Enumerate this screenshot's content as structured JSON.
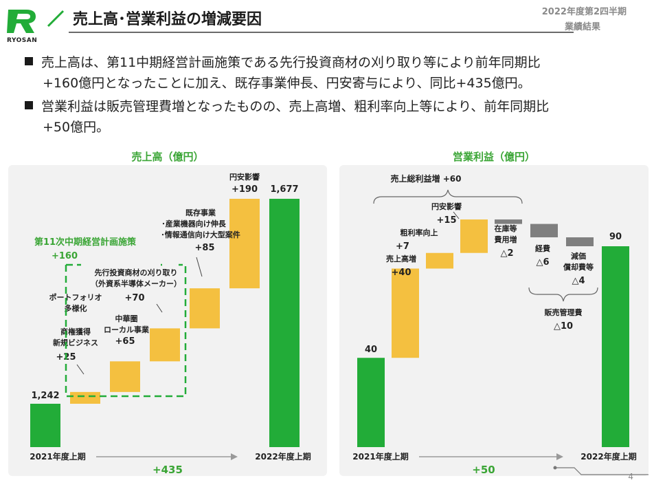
{
  "header": {
    "title": "売上高･営業利益の増減要因",
    "period_line1": "2022年度第2四半期",
    "period_line2": "業績結果",
    "logo_text": "RYOSAN"
  },
  "bullets": [
    {
      "line1": "売上高は、第11中期経営計画施策である先行投資商材の刈り取り等により前年同期比",
      "line2": "+160億円となったことに加え、既存事業伸長、円安寄与により、同比+435億円。"
    },
    {
      "line1": "営業利益は販売管理費増となったものの、売上高増、粗利率向上等により、前年同期比",
      "line2": "+50億円。"
    }
  ],
  "colors": {
    "green": "#22ac38",
    "yellow": "#f4c040",
    "gray": "#7f7f7f",
    "accent_text": "#3aa535"
  },
  "page_number": "4",
  "chart_data": [
    {
      "type": "bar",
      "subtype": "waterfall",
      "title": "売上高（億円）",
      "ylim": [
        1150,
        1720
      ],
      "start": {
        "label": "2021年度上期",
        "value": 1242,
        "value_label": "1,242"
      },
      "steps": [
        {
          "label_lines": [
            "ポートフォリオ",
            "多様化",
            "商権獲得",
            "新規ビジネス"
          ],
          "value": 25,
          "value_label": "+25"
        },
        {
          "label_lines": [
            "中華圏",
            "ローカル事業"
          ],
          "value": 65,
          "value_label": "+65"
        },
        {
          "label_lines": [
            "先行投資商材の刈り取り",
            "（外資系半導体メーカー）"
          ],
          "value": 70,
          "value_label": "+70"
        },
        {
          "label_lines": [
            "既存事業",
            "･産業機器向け伸長",
            "･情報通信向け大型案件"
          ],
          "value": 85,
          "value_label": "+85"
        },
        {
          "label_lines": [
            "円安影響"
          ],
          "value": 190,
          "value_label": "+190"
        }
      ],
      "end": {
        "label": "2022年度上期",
        "value": 1677,
        "value_label": "1,677"
      },
      "group": {
        "label": "第11次中期経営計画施策",
        "value_label": "+160"
      },
      "total_change": "+435"
    },
    {
      "type": "bar",
      "subtype": "waterfall",
      "title": "営業利益（億円）",
      "ylim": [
        0,
        95
      ],
      "start": {
        "label": "2021年度上期",
        "value": 40,
        "value_label": "40"
      },
      "steps": [
        {
          "label_lines": [
            "売上高増"
          ],
          "value": 40,
          "value_label": "+40"
        },
        {
          "label_lines": [
            "粗利率向上"
          ],
          "value": 7,
          "value_label": "+7"
        },
        {
          "label_lines": [
            "円安影響"
          ],
          "value": 15,
          "value_label": "+15"
        },
        {
          "label_lines": [
            "在庫等",
            "費用増"
          ],
          "value": -2,
          "value_label": "△2"
        },
        {
          "label_lines": [
            "経費"
          ],
          "value": -6,
          "value_label": "△6"
        },
        {
          "label_lines": [
            "減価",
            "償却費等"
          ],
          "value": -4,
          "value_label": "△4"
        }
      ],
      "end": {
        "label": "2022年度上期",
        "value": 90,
        "value_label": "90"
      },
      "brace_top": {
        "label": "売上総利益増",
        "value_label": "+60"
      },
      "brace_bottom": {
        "label": "販売管理費",
        "value_label": "△10"
      },
      "total_change": "+50"
    }
  ]
}
